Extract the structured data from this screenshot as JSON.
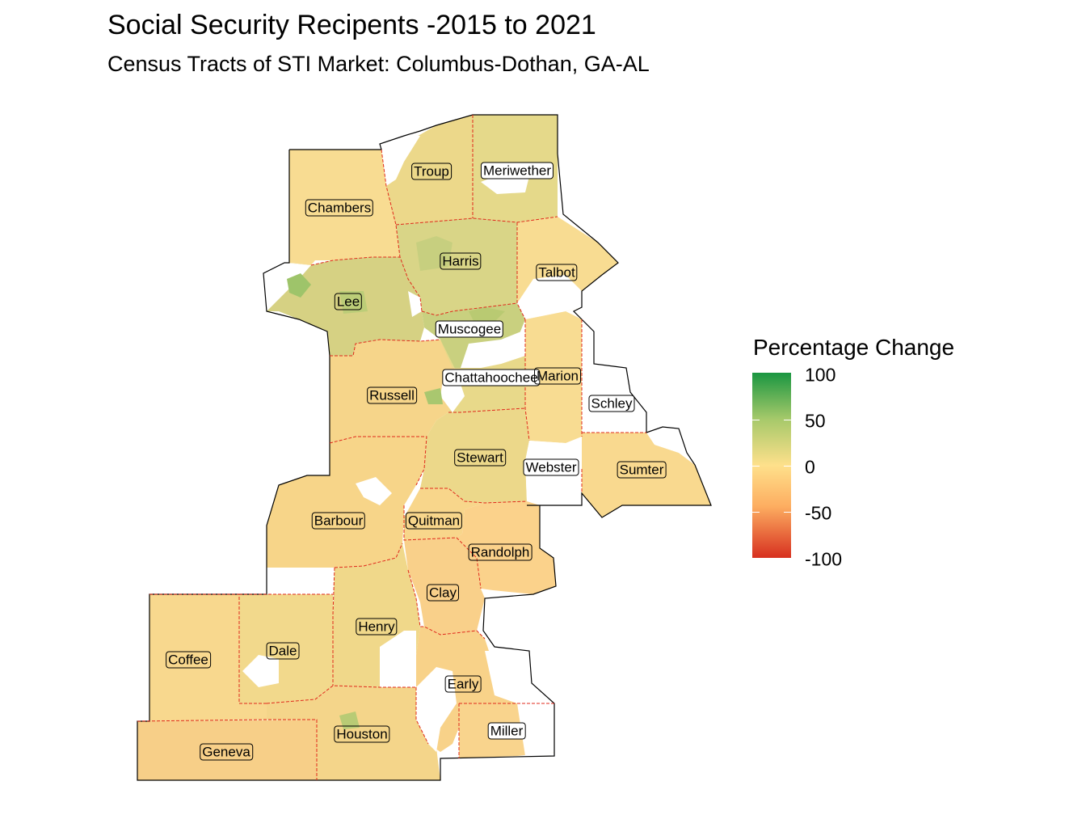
{
  "title": "Social Security Recipents -2015 to 2021",
  "subtitle": "Census Tracts of STI Market: Columbus-Dothan,  GA-AL",
  "legend": {
    "title": "Percentage Change",
    "scale": "diverging red-yellow-green",
    "colors": {
      "low": "#d7301f",
      "mid": "#fee08b",
      "high": "#1a9641"
    },
    "ticks": [
      "100",
      "50",
      "0",
      "-50",
      "-100"
    ]
  },
  "counties": [
    {
      "name": "Troup"
    },
    {
      "name": "Meriwether"
    },
    {
      "name": "Chambers"
    },
    {
      "name": "Harris"
    },
    {
      "name": "Talbot"
    },
    {
      "name": "Lee"
    },
    {
      "name": "Muscogee"
    },
    {
      "name": "Chattahoochee"
    },
    {
      "name": "Marion"
    },
    {
      "name": "Russell"
    },
    {
      "name": "Schley"
    },
    {
      "name": "Stewart"
    },
    {
      "name": "Webster"
    },
    {
      "name": "Sumter"
    },
    {
      "name": "Barbour"
    },
    {
      "name": "Quitman"
    },
    {
      "name": "Randolph"
    },
    {
      "name": "Clay"
    },
    {
      "name": "Henry"
    },
    {
      "name": "Dale"
    },
    {
      "name": "Coffee"
    },
    {
      "name": "Early"
    },
    {
      "name": "Houston"
    },
    {
      "name": "Miller"
    },
    {
      "name": "Geneva"
    }
  ]
}
